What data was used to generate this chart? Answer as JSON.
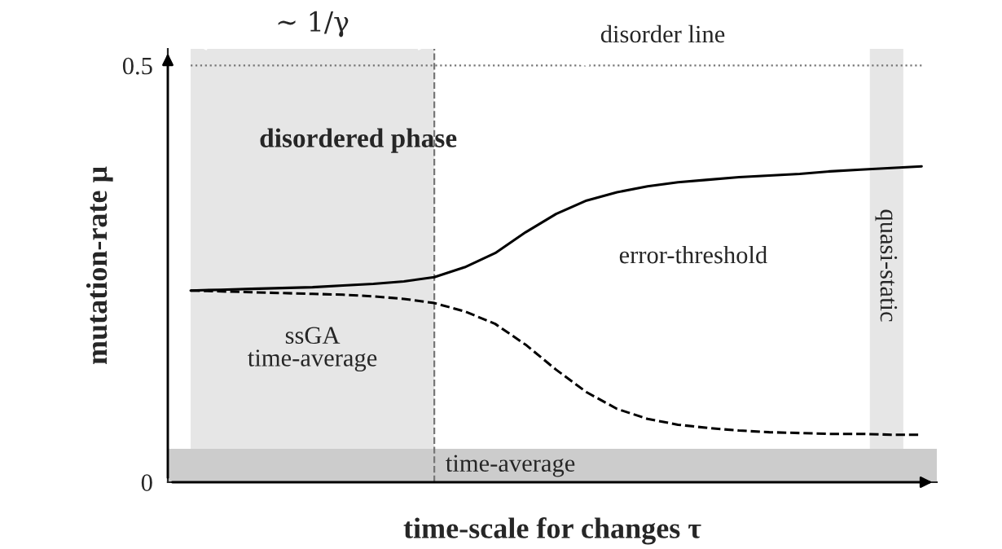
{
  "chart_data": {
    "type": "line",
    "xlabel": "time-scale for changes τ",
    "ylabel": "mutation-rate μ",
    "categories": [
      null,
      null,
      null,
      null,
      null,
      null,
      null,
      null,
      null,
      null,
      null,
      null,
      null,
      null,
      null,
      null,
      null,
      null,
      null,
      null,
      null,
      null,
      null,
      null,
      null
    ],
    "series": [
      {
        "color": "#000000",
        "line_style": "solid",
        "values": [
          0.23,
          0.231,
          0.232,
          0.233,
          0.234,
          0.236,
          0.238,
          0.241,
          0.246,
          0.258,
          0.275,
          0.3,
          0.322,
          0.338,
          0.348,
          0.355,
          0.36,
          0.363,
          0.366,
          0.368,
          0.37,
          0.373,
          0.375,
          0.377,
          0.379
        ]
      },
      {
        "color": "#000000",
        "line_style": "dashed",
        "values": [
          0.23,
          0.229,
          0.228,
          0.227,
          0.226,
          0.225,
          0.223,
          0.22,
          0.215,
          0.205,
          0.19,
          0.165,
          0.135,
          0.108,
          0.088,
          0.076,
          0.069,
          0.065,
          0.062,
          0.06,
          0.059,
          0.058,
          0.058,
          0.057,
          0.057
        ]
      }
    ],
    "ylim": [
      0,
      0.52
    ],
    "yticks": [
      0,
      0.5
    ],
    "grid": false,
    "legend": false,
    "marker": "none",
    "bands": [
      {
        "axis": "y",
        "from": 0,
        "to": 0.04,
        "label": "time-average",
        "color": "#cccccc"
      }
    ],
    "ref_lines": [
      {
        "axis": "y",
        "value": 0.5,
        "label": "disorder line",
        "line_style": "dotted",
        "color": "#777777"
      }
    ],
    "annotations": [
      "ssGA\ntime-average",
      "∼ 1/γ",
      "error-threshold",
      "disordered phase",
      "quasi-static"
    ]
  }
}
